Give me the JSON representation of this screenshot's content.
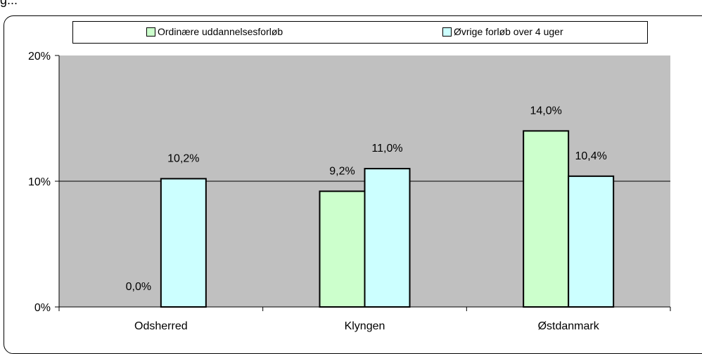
{
  "top_text": "g...",
  "colors": {
    "plot_bg": "#c0c0c0",
    "series_1": "#ccffcc",
    "series_2": "#ccffff",
    "gridline": "#000000",
    "frame": "#000000"
  },
  "chart_data": {
    "type": "bar",
    "categories": [
      "Odsherred",
      "Klyngen",
      "Østdanmark"
    ],
    "series": [
      {
        "name": "Ordinære uddannelsesforløb",
        "values": [
          0.0,
          9.2,
          14.0
        ],
        "labels": [
          "0,0%",
          "9,2%",
          "14,0%"
        ],
        "color": "#ccffcc"
      },
      {
        "name": "Øvrige forløb over 4 uger",
        "values": [
          10.2,
          11.0,
          10.4
        ],
        "labels": [
          "10,2%",
          "11,0%",
          "10,4%"
        ],
        "color": "#ccffff"
      }
    ],
    "ylim": [
      0,
      20
    ],
    "yticks": [
      0,
      10,
      20
    ],
    "ytick_labels": [
      "0%",
      "10%",
      "20%"
    ],
    "grid": true,
    "legend_position": "top"
  }
}
